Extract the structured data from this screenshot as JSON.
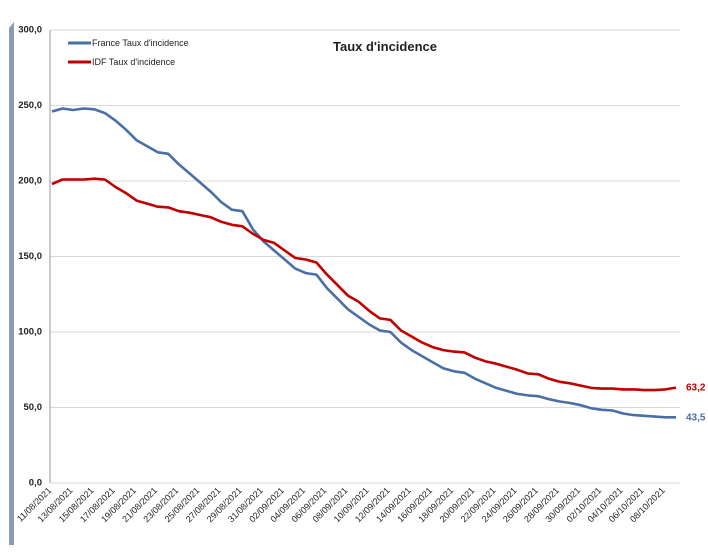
{
  "chart_data": {
    "type": "line",
    "title": "Taux d'incidence",
    "categories": [
      "11/08/2021",
      null,
      "13/08/2021",
      null,
      "15/08/2021",
      null,
      "17/08/2021",
      null,
      "19/08/2021",
      null,
      "21/08/2021",
      null,
      "23/08/2021",
      null,
      "25/08/2021",
      null,
      "27/08/2021",
      null,
      "29/08/2021",
      null,
      "31/08/2021",
      null,
      "02/09/2021",
      null,
      "04/09/2021",
      null,
      "06/09/2021",
      null,
      "08/09/2021",
      null,
      "10/09/2021",
      null,
      "12/09/2021",
      null,
      "14/09/2021",
      null,
      "16/09/2021",
      null,
      "18/09/2021",
      null,
      "20/09/2021",
      null,
      "22/09/2021",
      null,
      "24/09/2021",
      null,
      "26/09/2021",
      null,
      "28/09/2021",
      null,
      "30/09/2021",
      null,
      "02/10/2021",
      null,
      "04/10/2021",
      null,
      "06/10/2021",
      null,
      "08/10/2021",
      null
    ],
    "series": [
      {
        "name": "France Taux d'incidence",
        "color": "#4a6fa5",
        "values": [
          246,
          248,
          247,
          248,
          247.5,
          245,
          240,
          234,
          227,
          223,
          219,
          218,
          211,
          205,
          199,
          193,
          186,
          181,
          180,
          168,
          160,
          154,
          148,
          142,
          139,
          138,
          129,
          122,
          115,
          110,
          105,
          101,
          100,
          93,
          88,
          84,
          80,
          76,
          74,
          73,
          69,
          66,
          63,
          61,
          59,
          58,
          57.5,
          55.5,
          54,
          53,
          51.5,
          49.5,
          48.5,
          48,
          46,
          45,
          44.5,
          44,
          43.5,
          43.5
        ],
        "value_labels": [
          null,
          null,
          null,
          null,
          null,
          null,
          null,
          null,
          null,
          null,
          null,
          null,
          null,
          null,
          null,
          null,
          null,
          null,
          null,
          null,
          null,
          null,
          null,
          null,
          null,
          null,
          null,
          null,
          null,
          null,
          null,
          null,
          null,
          null,
          null,
          null,
          null,
          null,
          null,
          null,
          null,
          null,
          null,
          null,
          null,
          null,
          null,
          null,
          null,
          null,
          null,
          null,
          null,
          null,
          null,
          null,
          null,
          null,
          null,
          "43,5"
        ]
      },
      {
        "name": "IDF Taux d'incidence",
        "color": "#c00000",
        "values": [
          198,
          201,
          201,
          201,
          201.5,
          201,
          196,
          192,
          187,
          185,
          183,
          182.5,
          180,
          179,
          177.5,
          176,
          173,
          171,
          170,
          165,
          161,
          159,
          154,
          149,
          148,
          146,
          138,
          131,
          124,
          120,
          114,
          109,
          108,
          101,
          97,
          93,
          90,
          88,
          87,
          86.5,
          83,
          80.5,
          79,
          77,
          75,
          72.5,
          72,
          69,
          67,
          66,
          64.5,
          63,
          62.5,
          62.5,
          62,
          62,
          61.5,
          61.5,
          62,
          63.2
        ],
        "value_labels": [
          null,
          null,
          null,
          null,
          null,
          null,
          null,
          null,
          null,
          null,
          null,
          null,
          null,
          null,
          null,
          null,
          null,
          null,
          null,
          null,
          null,
          null,
          null,
          null,
          null,
          null,
          null,
          null,
          null,
          null,
          null,
          null,
          null,
          null,
          null,
          null,
          null,
          null,
          null,
          null,
          null,
          null,
          null,
          null,
          null,
          null,
          null,
          null,
          null,
          null,
          null,
          null,
          null,
          null,
          null,
          null,
          null,
          null,
          null,
          "63,2"
        ]
      }
    ],
    "ylim": [
      0,
      300
    ],
    "yticks": [
      {
        "value": 0,
        "label": "0,0"
      },
      {
        "value": 50,
        "label": "50,0"
      },
      {
        "value": 100,
        "label": "100,0"
      },
      {
        "value": 150,
        "label": "150,0"
      },
      {
        "value": 200,
        "label": "200,0"
      },
      {
        "value": 250,
        "label": "250,0"
      },
      {
        "value": 300,
        "label": "300,0"
      }
    ],
    "grid": true,
    "legend": "upper left"
  }
}
